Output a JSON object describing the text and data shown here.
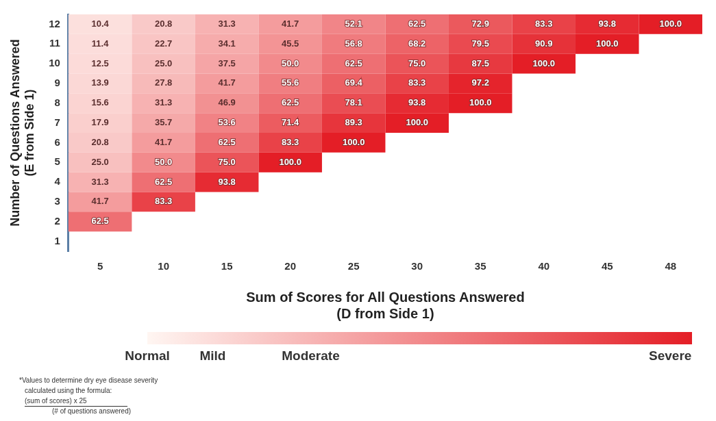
{
  "chart_data": {
    "type": "heatmap",
    "xlabel": "Sum of Scores for All Questions Answered\n(D from Side 1)",
    "ylabel": "Number of Questions Answered\n(E from Side 1)",
    "categories": [
      "5",
      "10",
      "15",
      "20",
      "25",
      "30",
      "35",
      "40",
      "45",
      "48"
    ],
    "y_categories": [
      "12",
      "11",
      "10",
      "9",
      "8",
      "7",
      "6",
      "5",
      "4",
      "3",
      "2",
      "1"
    ],
    "cells": [
      [
        10.4,
        20.8,
        31.3,
        41.7,
        52.1,
        62.5,
        72.9,
        83.3,
        93.8,
        100
      ],
      [
        11.4,
        22.7,
        34.1,
        45.5,
        56.8,
        68.2,
        79.5,
        90.9,
        100,
        null
      ],
      [
        12.5,
        25,
        37.5,
        50,
        62.5,
        75,
        87.5,
        100,
        null,
        null
      ],
      [
        13.9,
        27.8,
        41.7,
        55.6,
        69.4,
        83.3,
        97.2,
        null,
        null,
        null
      ],
      [
        15.6,
        31.3,
        46.9,
        62.5,
        78.1,
        93.8,
        100,
        null,
        null,
        null
      ],
      [
        17.9,
        35.7,
        53.6,
        71.4,
        89.3,
        100,
        null,
        null,
        null,
        null
      ],
      [
        20.8,
        41.7,
        62.5,
        83.3,
        100,
        null,
        null,
        null,
        null,
        null
      ],
      [
        25,
        50,
        75,
        100,
        null,
        null,
        null,
        null,
        null,
        null
      ],
      [
        31.3,
        62.5,
        93.8,
        null,
        null,
        null,
        null,
        null,
        null,
        null
      ],
      [
        41.7,
        83.3,
        null,
        null,
        null,
        null,
        null,
        null,
        null,
        null
      ],
      [
        62.5,
        null,
        null,
        null,
        null,
        null,
        null,
        null,
        null,
        null
      ],
      [
        null,
        null,
        null,
        null,
        null,
        null,
        null,
        null,
        null,
        null
      ]
    ],
    "cell_labels": [
      [
        "10.4",
        "20.8",
        "31.3",
        "41.7",
        "52.1",
        "62.5",
        "72.9",
        "83.3",
        "93.8",
        "100.0"
      ],
      [
        "11.4",
        "22.7",
        "34.1",
        "45.5",
        "56.8",
        "68.2",
        "79.5",
        "90.9",
        "100.0",
        null
      ],
      [
        "12.5",
        "25.0",
        "37.5",
        "50.0",
        "62.5",
        "75.0",
        "87.5",
        "100.0",
        null,
        null
      ],
      [
        "13.9",
        "27.8",
        "41.7",
        "55.6",
        "69.4",
        "83.3",
        "97.2",
        null,
        null,
        null
      ],
      [
        "15.6",
        "31.3",
        "46.9",
        "62.5",
        "78.1",
        "93.8",
        "100.0",
        null,
        null,
        null
      ],
      [
        "17.9",
        "35.7",
        "53.6",
        "71.4",
        "89.3",
        "100.0",
        null,
        null,
        null,
        null
      ],
      [
        "20.8",
        "41.7",
        "62.5",
        "83.3",
        "100.0",
        null,
        null,
        null,
        null,
        null
      ],
      [
        "25.0",
        "50.0",
        "75.0",
        "100.0",
        null,
        null,
        null,
        null,
        null,
        null
      ],
      [
        "31.3",
        "62.5",
        "93.8",
        null,
        null,
        null,
        null,
        null,
        null,
        null
      ],
      [
        "41.7",
        "83.3",
        null,
        null,
        null,
        null,
        null,
        null,
        null,
        null
      ],
      [
        "62.5",
        null,
        null,
        null,
        null,
        null,
        null,
        null,
        null,
        null
      ],
      [
        null,
        null,
        null,
        null,
        null,
        null,
        null,
        null,
        null,
        null
      ]
    ],
    "clim": [
      0,
      100
    ],
    "cticks": [
      {
        "value": 0,
        "label": "Normal"
      },
      {
        "value": 12,
        "label": "Mild"
      },
      {
        "value": 30,
        "label": "Moderate"
      },
      {
        "value": 96,
        "label": "Severe"
      }
    ],
    "annotations": [
      "*Values to determine dry eye disease severity",
      "calculated using the formula:",
      "(sum of scores) x 25",
      "(# of questions answered)"
    ]
  }
}
